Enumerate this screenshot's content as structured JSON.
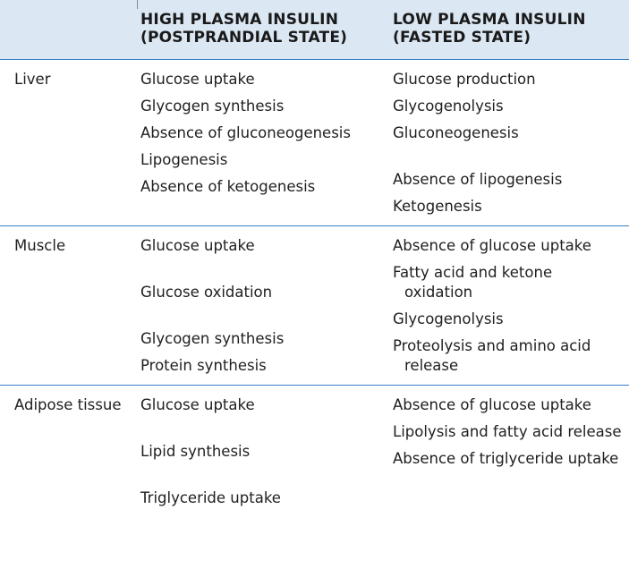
{
  "table": {
    "header": {
      "tissue": "",
      "high": "HIGH PLASMA INSULIN (POSTPRANDIAL STATE)",
      "low": "LOW PLASMA INSULIN (FASTED STATE)"
    },
    "rows": [
      {
        "tissue": "Liver",
        "pairs": [
          {
            "high": "Glucose uptake",
            "low": "Glucose production"
          },
          {
            "high": "Glycogen synthesis",
            "low": "Glycogenolysis"
          },
          {
            "high": "Absence of gluconeogenesis",
            "low": "Gluconeogenesis"
          },
          {
            "high": "Lipogenesis",
            "low": "Absence of lipogenesis"
          },
          {
            "high": "Absence of ketogenesis",
            "low": "Ketogenesis"
          }
        ]
      },
      {
        "tissue": "Muscle",
        "pairs": [
          {
            "high": "Glucose uptake",
            "low": "Absence of glucose uptake"
          },
          {
            "high": "Glucose oxidation",
            "low": "Fatty acid and ketone oxidation"
          },
          {
            "high": "Glycogen synthesis",
            "low": "Glycogenolysis"
          },
          {
            "high": "Protein synthesis",
            "low": "Proteolysis and amino acid release"
          }
        ]
      },
      {
        "tissue": "Adipose tissue",
        "pairs": [
          {
            "high": "Glucose uptake",
            "low": "Absence of glucose uptake"
          },
          {
            "high": "Lipid synthesis",
            "low": "Lipolysis and fatty acid release"
          },
          {
            "high": "Triglyceride uptake",
            "low": "Absence of triglyceride uptake"
          }
        ]
      }
    ]
  }
}
